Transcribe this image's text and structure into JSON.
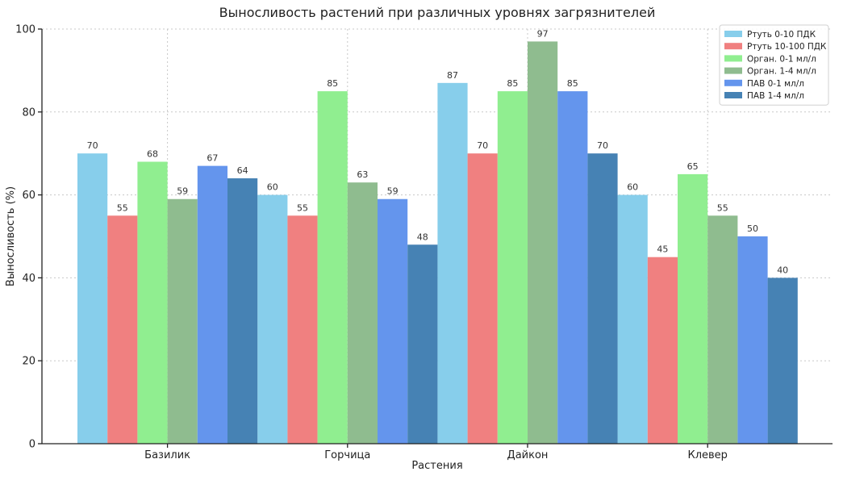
{
  "chart_data": {
    "type": "bar",
    "title": "Выносливость растений при различных уровнях загрязнителей",
    "xlabel": "Растения",
    "ylabel": "Выносливость (%)",
    "ylim": [
      0,
      100
    ],
    "yticks": [
      0,
      20,
      40,
      60,
      80,
      100
    ],
    "grid": true,
    "legend_position": "top-right",
    "categories": [
      "Базилик",
      "Горчица",
      "Дайкон",
      "Клевер"
    ],
    "series": [
      {
        "name": "Ртуть 0-10 ПДК",
        "color": "#87ceeb",
        "values": [
          70,
          60,
          87,
          60
        ]
      },
      {
        "name": "Ртуть 10-100 ПДК",
        "color": "#f08080",
        "values": [
          55,
          55,
          70,
          45
        ]
      },
      {
        "name": "Орган. 0-1 мл/л",
        "color": "#90ee90",
        "values": [
          68,
          85,
          85,
          65
        ]
      },
      {
        "name": "Орган. 1-4 мл/л",
        "color": "#8fbc8f",
        "values": [
          59,
          63,
          97,
          55
        ]
      },
      {
        "name": "ПАВ 0-1 мл/л",
        "color": "#6495ed",
        "values": [
          67,
          59,
          85,
          50
        ]
      },
      {
        "name": "ПАВ 1-4 мл/л",
        "color": "#4682b4",
        "values": [
          64,
          48,
          70,
          40
        ]
      }
    ]
  }
}
